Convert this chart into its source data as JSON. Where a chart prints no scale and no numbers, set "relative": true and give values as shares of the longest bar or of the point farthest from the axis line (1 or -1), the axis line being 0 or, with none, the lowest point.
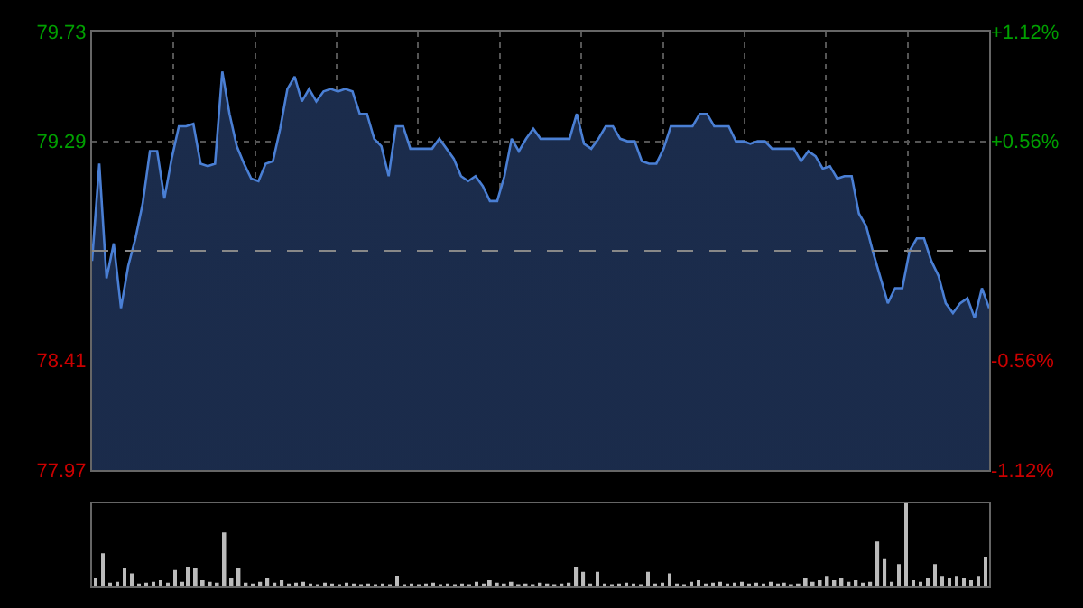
{
  "chart_data": [
    {
      "type": "area",
      "color": "#4a7fd4",
      "categories": [
        null,
        null,
        null,
        null,
        null,
        null,
        null,
        null,
        null,
        null,
        null,
        null,
        null,
        null,
        null,
        null,
        null,
        null,
        null,
        null,
        null,
        null,
        null,
        null,
        null,
        null,
        null,
        null,
        null,
        null,
        null,
        null,
        null,
        null,
        null,
        null,
        null,
        null,
        null,
        null,
        null,
        null,
        null,
        null,
        null,
        null,
        null,
        null,
        null,
        null,
        null,
        null,
        null,
        null,
        null,
        null,
        null,
        null,
        null,
        null,
        null,
        null,
        null,
        null,
        null,
        null,
        null,
        null,
        null,
        null,
        null,
        null,
        null,
        null,
        null,
        null,
        null,
        null,
        null,
        null,
        null,
        null,
        null,
        null,
        null,
        null,
        null,
        null,
        null,
        null,
        null,
        null,
        null,
        null,
        null,
        null,
        null,
        null,
        null,
        null,
        null,
        null,
        null,
        null,
        null,
        null,
        null,
        null,
        null,
        null,
        null,
        null,
        null,
        null,
        null,
        null,
        null,
        null,
        null,
        null,
        null,
        null,
        null,
        null,
        null
      ],
      "values": [
        78.81,
        79.2,
        78.74,
        78.88,
        78.62,
        78.79,
        78.9,
        79.04,
        79.25,
        79.25,
        79.06,
        79.22,
        79.35,
        79.35,
        79.36,
        79.2,
        79.19,
        79.2,
        79.57,
        79.4,
        79.27,
        79.2,
        79.14,
        79.13,
        79.2,
        79.21,
        79.34,
        79.5,
        79.55,
        79.45,
        79.5,
        79.45,
        79.49,
        79.5,
        79.49,
        79.5,
        79.49,
        79.4,
        79.4,
        79.3,
        79.27,
        79.15,
        79.35,
        79.35,
        79.26,
        79.26,
        79.26,
        79.26,
        79.3,
        79.26,
        79.22,
        79.15,
        79.13,
        79.15,
        79.11,
        79.05,
        79.05,
        79.15,
        79.3,
        79.25,
        79.3,
        79.34,
        79.3,
        79.3,
        79.3,
        79.3,
        79.3,
        79.4,
        79.28,
        79.26,
        79.3,
        79.35,
        79.35,
        79.3,
        79.29,
        79.29,
        79.21,
        79.2,
        79.2,
        79.26,
        79.35,
        79.35,
        79.35,
        79.35,
        79.4,
        79.4,
        79.35,
        79.35,
        79.35,
        79.29,
        79.29,
        79.28,
        79.29,
        79.29,
        79.26,
        79.26,
        79.26,
        79.26,
        79.21,
        79.25,
        79.23,
        79.18,
        79.19,
        79.14,
        79.15,
        79.15,
        79.0,
        78.95,
        78.84,
        78.74,
        78.64,
        78.7,
        78.7,
        78.85,
        78.9,
        78.9,
        78.81,
        78.75,
        78.64,
        78.6,
        78.64,
        78.66,
        78.58,
        78.7,
        78.62
      ],
      "ylim": [
        77.97,
        79.73
      ],
      "yticks": [
        77.97,
        78.41,
        79.29,
        79.73
      ],
      "y2lim": [
        -1.12,
        1.12
      ],
      "y2ticks": [
        {
          "value": -1.12,
          "label": "-1.12%"
        },
        {
          "value": -0.56,
          "label": "-0.56%"
        },
        {
          "value": 0.56,
          "label": "+0.56%"
        },
        {
          "value": 1.12,
          "label": "+1.12%"
        }
      ],
      "ref_lines": [
        {
          "axis": "y",
          "value": 78.85,
          "color": "#888888",
          "line_style": "dashed"
        }
      ],
      "grid": true,
      "tick_labels": "y"
    },
    {
      "type": "bar",
      "relative": true,
      "color": "#bbbbbb",
      "tick_labels": false,
      "categories": [
        null,
        null,
        null,
        null,
        null,
        null,
        null,
        null,
        null,
        null,
        null,
        null,
        null,
        null,
        null,
        null,
        null,
        null,
        null,
        null,
        null,
        null,
        null,
        null,
        null,
        null,
        null,
        null,
        null,
        null,
        null,
        null,
        null,
        null,
        null,
        null,
        null,
        null,
        null,
        null,
        null,
        null,
        null,
        null,
        null,
        null,
        null,
        null,
        null,
        null,
        null,
        null,
        null,
        null,
        null,
        null,
        null,
        null,
        null,
        null,
        null,
        null,
        null,
        null,
        null,
        null,
        null,
        null,
        null,
        null,
        null,
        null,
        null,
        null,
        null,
        null,
        null,
        null,
        null,
        null,
        null,
        null,
        null,
        null,
        null,
        null,
        null,
        null,
        null,
        null,
        null,
        null,
        null,
        null,
        null,
        null,
        null,
        null,
        null,
        null,
        null,
        null,
        null,
        null,
        null,
        null,
        null,
        null,
        null,
        null,
        null,
        null,
        null,
        null,
        null,
        null,
        null,
        null,
        null,
        null,
        null,
        null,
        null,
        null,
        null
      ],
      "values": [
        0.1,
        0.4,
        0.05,
        0.06,
        0.22,
        0.16,
        0.04,
        0.05,
        0.06,
        0.08,
        0.05,
        0.2,
        0.06,
        0.24,
        0.22,
        0.08,
        0.06,
        0.05,
        0.65,
        0.1,
        0.22,
        0.05,
        0.04,
        0.06,
        0.1,
        0.05,
        0.08,
        0.04,
        0.05,
        0.06,
        0.04,
        0.03,
        0.05,
        0.04,
        0.03,
        0.05,
        0.04,
        0.03,
        0.04,
        0.03,
        0.04,
        0.03,
        0.13,
        0.03,
        0.04,
        0.03,
        0.04,
        0.05,
        0.03,
        0.04,
        0.03,
        0.04,
        0.03,
        0.06,
        0.04,
        0.08,
        0.05,
        0.04,
        0.06,
        0.03,
        0.04,
        0.03,
        0.05,
        0.04,
        0.03,
        0.04,
        0.05,
        0.24,
        0.18,
        0.04,
        0.18,
        0.04,
        0.03,
        0.04,
        0.05,
        0.04,
        0.03,
        0.18,
        0.04,
        0.05,
        0.16,
        0.04,
        0.03,
        0.06,
        0.08,
        0.04,
        0.05,
        0.06,
        0.04,
        0.05,
        0.06,
        0.04,
        0.05,
        0.04,
        0.06,
        0.04,
        0.05,
        0.03,
        0.04,
        0.1,
        0.06,
        0.08,
        0.12,
        0.08,
        0.1,
        0.06,
        0.08,
        0.05,
        0.06,
        0.54,
        0.33,
        0.06,
        0.27,
        1,
        0.08,
        0.06,
        0.1,
        0.27,
        0.12,
        0.1,
        0.12,
        0.1,
        0.08,
        0.12,
        0.36
      ]
    }
  ]
}
